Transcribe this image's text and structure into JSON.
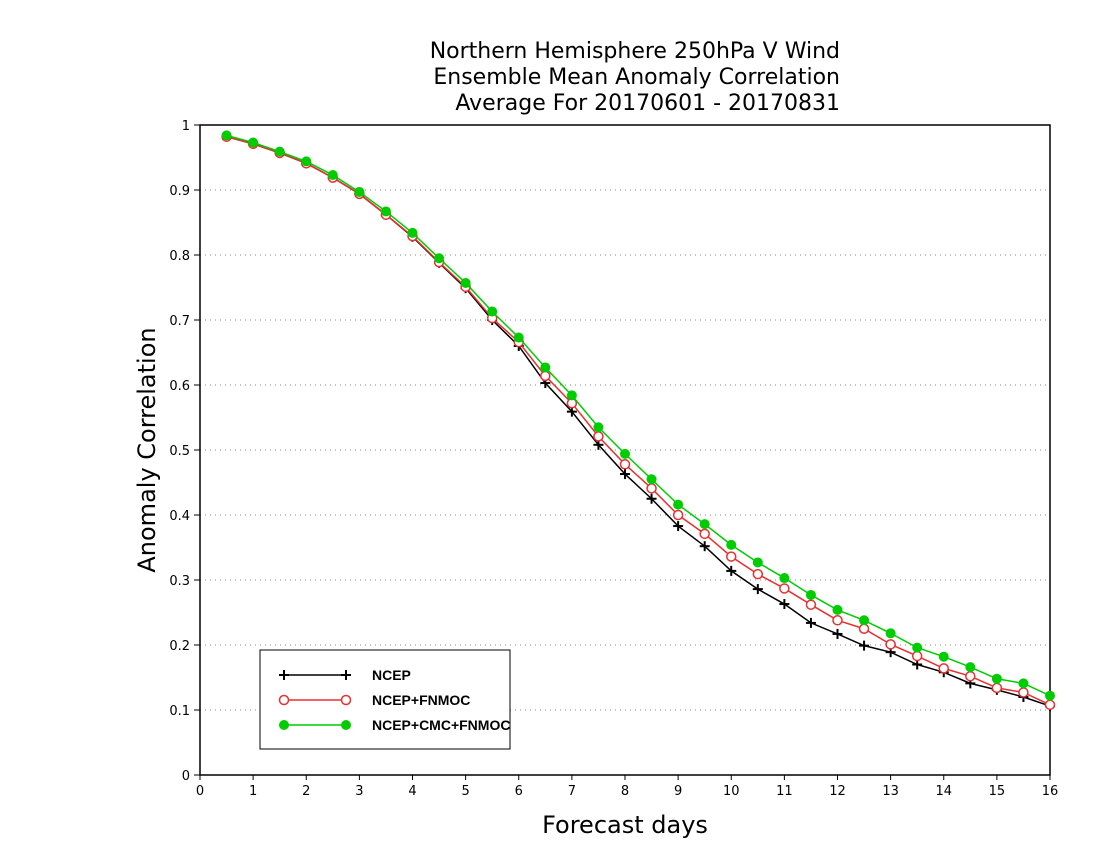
{
  "chart_data": {
    "type": "line",
    "title": [
      "Northern Hemisphere 250hPa V Wind",
      "Ensemble Mean Anomaly Correlation",
      "Average For 20170601 - 20170831"
    ],
    "xlabel": "Forecast days",
    "ylabel": "Anomaly Correlation",
    "xlim": [
      0,
      16
    ],
    "ylim": [
      0,
      1
    ],
    "xticks": [
      0,
      1,
      2,
      3,
      4,
      5,
      6,
      7,
      8,
      9,
      10,
      11,
      12,
      13,
      14,
      15,
      16
    ],
    "yticks": [
      0,
      0.1,
      0.2,
      0.3,
      0.4,
      0.5,
      0.6,
      0.7,
      0.8,
      0.9,
      1
    ],
    "grid": true,
    "legend_position": "bottom-left",
    "x": [
      0.5,
      1,
      1.5,
      2,
      2.5,
      3,
      3.5,
      4,
      4.5,
      5,
      5.5,
      6,
      6.5,
      7,
      7.5,
      8,
      8.5,
      9,
      9.5,
      10,
      10.5,
      11,
      11.5,
      12,
      12.5,
      13,
      13.5,
      14,
      14.5,
      15,
      15.5,
      16
    ],
    "series": [
      {
        "name": "NCEP",
        "color": "#000000",
        "marker": "plus",
        "values": [
          0.982,
          0.971,
          0.957,
          0.941,
          0.919,
          0.894,
          0.862,
          0.828,
          0.788,
          0.749,
          0.7,
          0.66,
          0.603,
          0.559,
          0.508,
          0.463,
          0.425,
          0.383,
          0.352,
          0.314,
          0.286,
          0.263,
          0.234,
          0.217,
          0.199,
          0.189,
          0.17,
          0.158,
          0.141,
          0.131,
          0.12,
          0.106
        ]
      },
      {
        "name": "NCEP+FNMOC",
        "color": "#e83030",
        "marker": "open-circle",
        "values": [
          0.982,
          0.971,
          0.957,
          0.941,
          0.919,
          0.894,
          0.862,
          0.829,
          0.789,
          0.751,
          0.703,
          0.666,
          0.614,
          0.572,
          0.521,
          0.478,
          0.441,
          0.4,
          0.371,
          0.336,
          0.309,
          0.287,
          0.262,
          0.238,
          0.225,
          0.201,
          0.183,
          0.164,
          0.152,
          0.134,
          0.127,
          0.108
        ]
      },
      {
        "name": "NCEP+CMC+FNMOC",
        "color": "#00cc00",
        "marker": "filled-circle",
        "values": [
          0.984,
          0.973,
          0.959,
          0.944,
          0.923,
          0.897,
          0.867,
          0.834,
          0.795,
          0.757,
          0.713,
          0.673,
          0.627,
          0.584,
          0.535,
          0.494,
          0.455,
          0.416,
          0.386,
          0.354,
          0.327,
          0.303,
          0.277,
          0.254,
          0.238,
          0.218,
          0.196,
          0.182,
          0.166,
          0.148,
          0.141,
          0.122
        ]
      }
    ]
  }
}
